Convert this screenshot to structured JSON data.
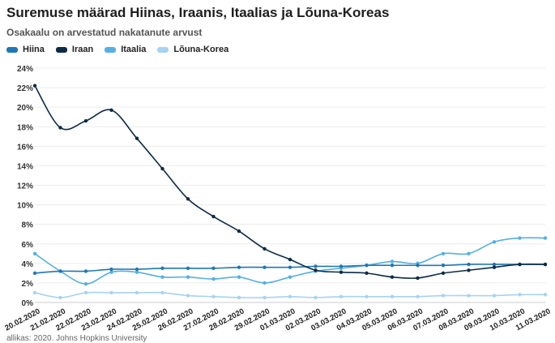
{
  "title": "Suremuse määrad Hiinas, Iraanis, Itaalias ja Lõuna-Koreas",
  "subtitle": "Osakaalu on arvestatud nakatanute arvust",
  "source": "allikas: 2020. Johns Hopkins University",
  "colors": {
    "Hiina": "#1f77b4",
    "Iraan": "#0d2b45",
    "Itaalia": "#54b0e3",
    "Lõuna-Korea": "#a6d3f2"
  },
  "chart_data": {
    "type": "line",
    "x": [
      "20.02.2020",
      "21.02.2020",
      "22.02.2020",
      "23.02.2020",
      "24.02.2020",
      "25.02.2020",
      "26.02.2020",
      "27.02.2020",
      "28.02.2020",
      "29.02.2020",
      "01.03.2020",
      "02.03.2020",
      "03.03.2020",
      "04.03.2020",
      "05.03.2020",
      "06.03.2020",
      "07.03.2020",
      "08.03.2020",
      "09.03.2020",
      "10.03.2020",
      "11.03.2020"
    ],
    "yticks": [
      "0%",
      "2%",
      "4%",
      "6%",
      "8%",
      "10%",
      "12%",
      "14%",
      "16%",
      "18%",
      "20%",
      "22%",
      "24%"
    ],
    "ylim": [
      0,
      24
    ],
    "grid": true,
    "legend_position": "top-left",
    "series": [
      {
        "name": "Hiina",
        "values": [
          3.0,
          3.2,
          3.2,
          3.4,
          3.4,
          3.5,
          3.5,
          3.5,
          3.6,
          3.6,
          3.6,
          3.7,
          3.7,
          3.8,
          3.8,
          3.8,
          3.8,
          3.9,
          3.9,
          3.9,
          3.9
        ]
      },
      {
        "name": "Iraan",
        "values": [
          22.2,
          17.9,
          18.6,
          19.7,
          16.8,
          13.7,
          10.6,
          8.8,
          7.3,
          5.5,
          4.4,
          3.3,
          3.1,
          3.0,
          2.6,
          2.5,
          3.0,
          3.3,
          3.6,
          3.9,
          3.9
        ]
      },
      {
        "name": "Itaalia",
        "values": [
          5.0,
          3.2,
          1.9,
          3.1,
          3.1,
          2.6,
          2.6,
          2.4,
          2.6,
          2.0,
          2.6,
          3.2,
          3.5,
          3.8,
          4.2,
          4.0,
          5.0,
          5.0,
          6.2,
          6.6,
          6.6
        ]
      },
      {
        "name": "Lõuna-Korea",
        "values": [
          1.0,
          0.5,
          1.0,
          1.0,
          1.0,
          1.0,
          0.7,
          0.6,
          0.5,
          0.5,
          0.6,
          0.5,
          0.6,
          0.6,
          0.6,
          0.6,
          0.7,
          0.7,
          0.7,
          0.8,
          0.8
        ]
      }
    ]
  }
}
